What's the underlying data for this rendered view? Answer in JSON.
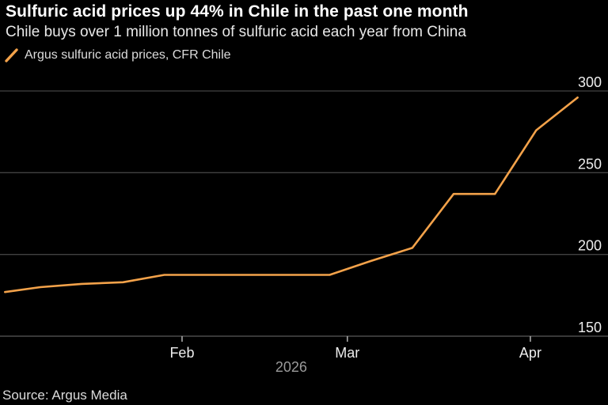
{
  "header": {
    "title": "Sulfuric acid prices up 44% in Chile in the past one month",
    "subtitle": "Chile buys over 1 million tonnes of sulfuric acid each year from China"
  },
  "legend": {
    "swatch_icon": "line-slash-icon",
    "label": "Argus sulfuric acid prices, CFR Chile"
  },
  "footer": {
    "source": "Source: Argus Media"
  },
  "colors": {
    "background": "#000000",
    "line": "#f3a24a",
    "gridline": "#424242",
    "axis_line": "#5a5a5a",
    "tick_mark": "#a8a8a8",
    "axis_label": "#ededed",
    "year_label": "#9a9a9a",
    "title": "#ffffff",
    "subtitle": "#e8e8e8"
  },
  "chart_data": {
    "type": "line",
    "title": "Sulfuric acid prices up 44% in Chile in the past one month",
    "subtitle": "Chile buys over 1 million tonnes of sulfuric acid each year from China",
    "source": "Source: Argus Media",
    "legend": [
      "Argus sulfuric acid prices, CFR Chile"
    ],
    "legend_position": "top-left",
    "grid": "horizontal",
    "ylim": [
      150,
      300
    ],
    "y_ticks": [
      300,
      250,
      200,
      150
    ],
    "y_tick_side": "right",
    "x_axis": {
      "year": "2026",
      "month_ticks": [
        {
          "label": "Feb",
          "day": 31
        },
        {
          "label": "Mar",
          "day": 59
        },
        {
          "label": "Apr",
          "day": 90
        }
      ]
    },
    "series": [
      {
        "name": "Argus sulfuric acid prices, CFR Chile",
        "color": "#f3a24a",
        "points": [
          {
            "date": "Jan 2",
            "day": 1,
            "value": 177
          },
          {
            "date": "Jan 8",
            "day": 7,
            "value": 180
          },
          {
            "date": "Jan 15",
            "day": 14,
            "value": 182
          },
          {
            "date": "Jan 22",
            "day": 21,
            "value": 183
          },
          {
            "date": "Jan 29",
            "day": 28,
            "value": 187.5
          },
          {
            "date": "Feb 5",
            "day": 35,
            "value": 187.5
          },
          {
            "date": "Feb 12",
            "day": 42,
            "value": 187.5
          },
          {
            "date": "Feb 19",
            "day": 49,
            "value": 187.5
          },
          {
            "date": "Feb 26",
            "day": 56,
            "value": 187.5
          },
          {
            "date": "Mar 5",
            "day": 63,
            "value": 196
          },
          {
            "date": "Mar 12",
            "day": 70,
            "value": 204
          },
          {
            "date": "Mar 19",
            "day": 77,
            "value": 237
          },
          {
            "date": "Mar 26",
            "day": 84,
            "value": 237
          },
          {
            "date": "Apr 2",
            "day": 91,
            "value": 276
          },
          {
            "date": "Apr 9",
            "day": 98,
            "value": 296
          }
        ]
      }
    ]
  }
}
